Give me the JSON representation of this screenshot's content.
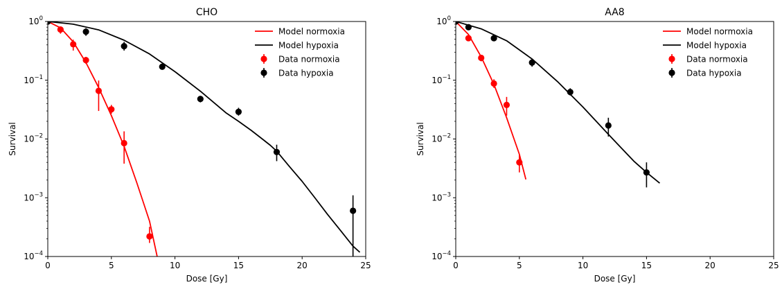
{
  "chart_data": [
    {
      "type": "line",
      "title": "CHO",
      "xlabel": "Dose [Gy]",
      "ylabel": "Survival",
      "xlim": [
        0,
        25
      ],
      "ylim": [
        0.0001,
        1
      ],
      "yscale": "log",
      "xticks": [
        0,
        5,
        10,
        15,
        20,
        25
      ],
      "yticks": [
        {
          "value": 0.0001,
          "base": "10",
          "exp": "−4"
        },
        {
          "value": 0.001,
          "base": "10",
          "exp": "−3"
        },
        {
          "value": 0.01,
          "base": "10",
          "exp": "−2"
        },
        {
          "value": 0.1,
          "base": "10",
          "exp": "−1"
        },
        {
          "value": 1,
          "base": "10",
          "exp": "0"
        }
      ],
      "grid": false,
      "legend_position": "top-right",
      "series": [
        {
          "name": "Model normoxia",
          "kind": "line",
          "color": "#ff0000",
          "x": [
            0,
            1,
            2,
            3,
            4,
            5,
            6,
            7,
            7.5,
            8,
            8.6
          ],
          "y": [
            1,
            0.78,
            0.45,
            0.2,
            0.075,
            0.025,
            0.0075,
            0.0018,
            0.00085,
            0.0004,
            0.0001
          ]
        },
        {
          "name": "Model hypoxia",
          "kind": "line",
          "color": "#000000",
          "x": [
            0,
            2,
            4,
            6,
            8,
            10,
            12,
            14,
            15,
            16,
            17,
            17.5,
            18,
            19,
            20,
            21,
            22,
            23,
            24,
            24.5
          ],
          "y": [
            1,
            0.9,
            0.72,
            0.48,
            0.28,
            0.14,
            0.065,
            0.028,
            0.02,
            0.014,
            0.0095,
            0.0078,
            0.0062,
            0.0034,
            0.0019,
            0.001,
            0.00052,
            0.00028,
            0.00015,
            0.00012
          ]
        },
        {
          "name": "Data normoxia",
          "kind": "points",
          "color": "#ff0000",
          "x": [
            0,
            1,
            2,
            3,
            4,
            5,
            6,
            8
          ],
          "y": [
            1,
            0.73,
            0.41,
            0.22,
            0.066,
            0.032,
            0.0085,
            0.00022
          ],
          "y_low": [
            0.95,
            0.62,
            0.32,
            0.19,
            0.03,
            0.027,
            0.0038,
            0.00017
          ],
          "y_high": [
            1.04,
            0.82,
            0.49,
            0.25,
            0.099,
            0.038,
            0.0135,
            0.00032
          ]
        },
        {
          "name": "Data hypoxia",
          "kind": "points",
          "color": "#000000",
          "x": [
            0,
            3,
            6,
            9,
            12,
            15,
            18,
            24
          ],
          "y": [
            1,
            0.67,
            0.38,
            0.17,
            0.048,
            0.029,
            0.006,
            0.0006
          ],
          "y_low": [
            0.96,
            0.57,
            0.32,
            0.155,
            0.042,
            0.025,
            0.0042,
            0.0001
          ],
          "y_high": [
            1.04,
            0.77,
            0.45,
            0.19,
            0.054,
            0.034,
            0.008,
            0.0011
          ]
        }
      ]
    },
    {
      "type": "line",
      "title": "AA8",
      "xlabel": "Dose [Gy]",
      "ylabel": "Survival",
      "xlim": [
        0,
        25
      ],
      "ylim": [
        0.0001,
        1
      ],
      "yscale": "log",
      "xticks": [
        0,
        5,
        10,
        15,
        20,
        25
      ],
      "yticks": [
        {
          "value": 0.0001,
          "base": "10",
          "exp": "−4"
        },
        {
          "value": 0.001,
          "base": "10",
          "exp": "−3"
        },
        {
          "value": 0.01,
          "base": "10",
          "exp": "−2"
        },
        {
          "value": 0.1,
          "base": "10",
          "exp": "−1"
        },
        {
          "value": 1,
          "base": "10",
          "exp": "0"
        }
      ],
      "grid": false,
      "legend_position": "top-right",
      "series": [
        {
          "name": "Model normoxia",
          "kind": "line",
          "color": "#ff0000",
          "x": [
            0,
            1,
            2,
            3,
            4,
            5,
            5.5
          ],
          "y": [
            1,
            0.6,
            0.25,
            0.085,
            0.023,
            0.0055,
            0.0021
          ]
        },
        {
          "name": "Model hypoxia",
          "kind": "line",
          "color": "#000000",
          "x": [
            0,
            2,
            4,
            6,
            8,
            10,
            12,
            14,
            15,
            16
          ],
          "y": [
            1,
            0.75,
            0.47,
            0.23,
            0.095,
            0.035,
            0.012,
            0.0042,
            0.0027,
            0.0018
          ]
        },
        {
          "name": "Data normoxia",
          "kind": "points",
          "color": "#ff0000",
          "x": [
            0,
            1,
            2,
            3,
            4,
            5
          ],
          "y": [
            1,
            0.52,
            0.24,
            0.088,
            0.038,
            0.004
          ],
          "y_low": [
            0.95,
            0.47,
            0.21,
            0.074,
            0.025,
            0.0027
          ],
          "y_high": [
            1.05,
            0.58,
            0.27,
            0.104,
            0.052,
            0.0053
          ]
        },
        {
          "name": "Data hypoxia",
          "kind": "points",
          "color": "#000000",
          "x": [
            0,
            1,
            3,
            6,
            9,
            12,
            15
          ],
          "y": [
            1,
            0.8,
            0.52,
            0.2,
            0.063,
            0.017,
            0.0027
          ],
          "y_low": [
            0.95,
            0.75,
            0.48,
            0.17,
            0.055,
            0.011,
            0.0015
          ],
          "y_high": [
            1.05,
            0.86,
            0.57,
            0.23,
            0.073,
            0.023,
            0.004
          ]
        }
      ]
    }
  ]
}
